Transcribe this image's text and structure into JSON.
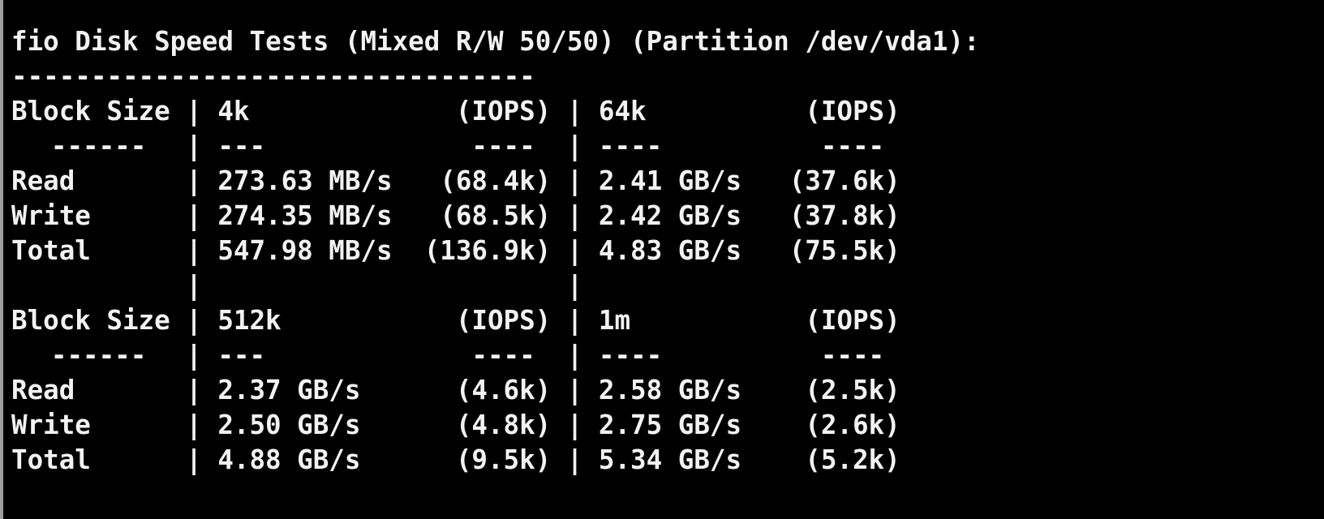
{
  "terminal": {
    "title": "fio Disk Speed Tests (Mixed R/W 50/50) (Partition /dev/vda1):",
    "separator": "---------------------------------",
    "pipe": "|",
    "underline": {
      "label": "------",
      "col1_speed": "---",
      "col1_iops": "----",
      "col2_speed": "----",
      "col2_iops": "----"
    },
    "tables": [
      {
        "header": {
          "label": "Block Size",
          "col1_name": "4k",
          "col1_iops_label": "(IOPS)",
          "col2_name": "64k",
          "col2_iops_label": "(IOPS)"
        },
        "rows": [
          {
            "label": "Read",
            "col1_speed": "273.63 MB/s",
            "col1_iops": "(68.4k)",
            "col2_speed": "2.41 GB/s",
            "col2_iops": "(37.6k)"
          },
          {
            "label": "Write",
            "col1_speed": "274.35 MB/s",
            "col1_iops": "(68.5k)",
            "col2_speed": "2.42 GB/s",
            "col2_iops": "(37.8k)"
          },
          {
            "label": "Total",
            "col1_speed": "547.98 MB/s",
            "col1_iops": "(136.9k)",
            "col2_speed": "4.83 GB/s",
            "col2_iops": "(75.5k)"
          }
        ]
      },
      {
        "header": {
          "label": "Block Size",
          "col1_name": "512k",
          "col1_iops_label": "(IOPS)",
          "col2_name": "1m",
          "col2_iops_label": "(IOPS)"
        },
        "rows": [
          {
            "label": "Read",
            "col1_speed": "2.37 GB/s",
            "col1_iops": "(4.6k)",
            "col2_speed": "2.58 GB/s",
            "col2_iops": "(2.5k)"
          },
          {
            "label": "Write",
            "col1_speed": "2.50 GB/s",
            "col1_iops": "(4.8k)",
            "col2_speed": "2.75 GB/s",
            "col2_iops": "(2.6k)"
          },
          {
            "label": "Total",
            "col1_speed": "4.88 GB/s",
            "col1_iops": "(9.5k)",
            "col2_speed": "5.34 GB/s",
            "col2_iops": "(5.2k)"
          }
        ]
      }
    ],
    "colors": {
      "background": "#000000",
      "text": "#f2f2f2",
      "window_edge": "#9e9e9e"
    }
  }
}
